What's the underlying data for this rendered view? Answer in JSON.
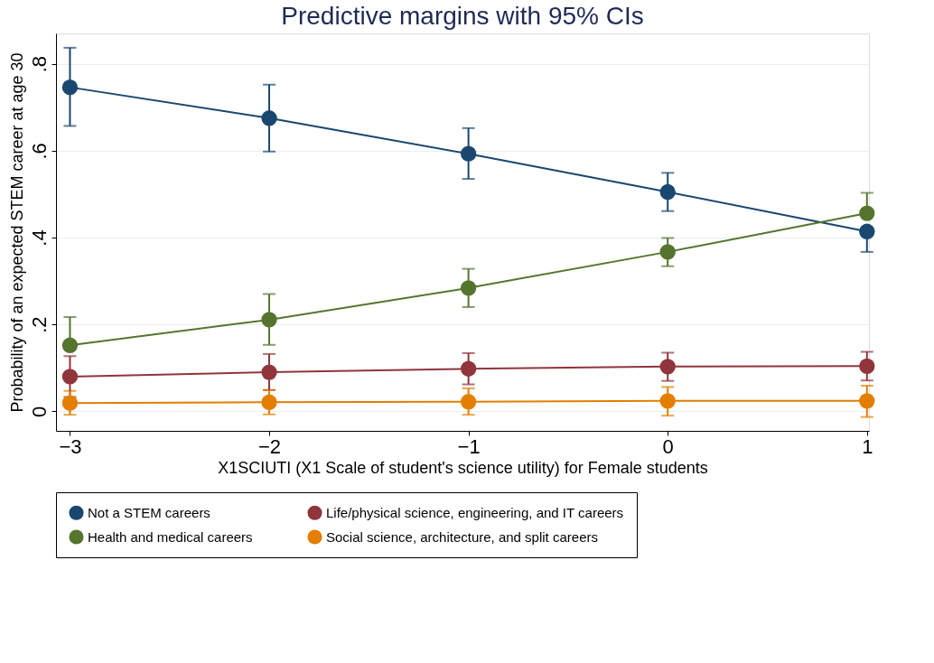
{
  "chart_data": {
    "type": "line",
    "title": "Predictive margins with 95% CIs",
    "xlabel": "X1SCIUTI (X1 Scale of student's science utility) for Female students",
    "ylabel": "Probability of an expected STEM career at age 30",
    "x": [
      -3,
      -2,
      -1,
      0,
      1
    ],
    "xlim": [
      -3.07,
      1.01
    ],
    "xticks": [
      -3,
      -2,
      -1,
      0,
      1
    ],
    "ylim": [
      -0.045,
      0.87
    ],
    "yticks": [
      0,
      {
        "value": 0.2,
        "label": ".2"
      },
      {
        "value": 0.4,
        "label": ".4"
      },
      {
        "value": 0.6,
        "label": ".6"
      },
      {
        "value": 0.8,
        "label": ".8"
      }
    ],
    "grid": "y",
    "legend": "bottom",
    "marker": "circle",
    "line_style": "solid",
    "series": [
      {
        "name": "Not a STEM careers",
        "color": "#1a476f",
        "values": [
          0.746,
          0.675,
          0.593,
          0.505,
          0.414
        ],
        "errors": [
          [
            0.657,
            0.837
          ],
          [
            0.598,
            0.752
          ],
          [
            0.535,
            0.652
          ],
          [
            0.461,
            0.549
          ],
          [
            0.367,
            0.414
          ]
        ]
      },
      {
        "name": "Life/physical science, engineering, and IT careers",
        "color": "#90353b",
        "values": [
          0.08,
          0.09,
          0.098,
          0.103,
          0.104
        ],
        "errors": [
          [
            0.033,
            0.127
          ],
          [
            0.049,
            0.132
          ],
          [
            0.062,
            0.134
          ],
          [
            0.07,
            0.135
          ],
          [
            0.071,
            0.137
          ]
        ]
      },
      {
        "name": "Health and medical careers",
        "color": "#55752f",
        "values": [
          0.152,
          0.211,
          0.284,
          0.367,
          0.456
        ],
        "errors": [
          [
            0.152,
            0.217
          ],
          [
            0.153,
            0.27
          ],
          [
            0.24,
            0.328
          ],
          [
            0.334,
            0.399
          ],
          [
            0.456,
            0.503
          ]
        ]
      },
      {
        "name": "Social science, architecture, and split careers",
        "color": "#e37e00",
        "values": [
          0.019,
          0.021,
          0.022,
          0.024,
          0.024
        ],
        "errors": [
          [
            -0.008,
            0.047
          ],
          [
            -0.007,
            0.049
          ],
          [
            -0.008,
            0.053
          ],
          [
            -0.01,
            0.056
          ],
          [
            -0.013,
            0.059
          ]
        ]
      }
    ]
  }
}
